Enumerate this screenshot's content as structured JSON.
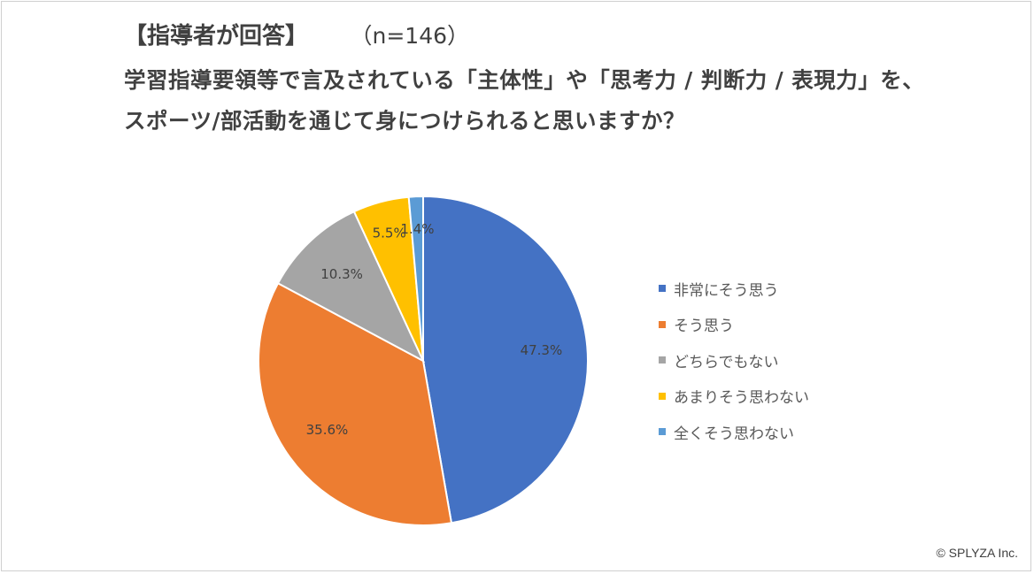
{
  "header": {
    "respondent_label": "【指導者が回答】",
    "sample_size": "（n=146）",
    "title": "学習指導要領等で言及されている「主体性」や「思考力 / 判断力 / 表現力」を、スポーツ/部活動を通じて身につけられると思いますか？"
  },
  "chart_data": {
    "type": "pie",
    "title": "学習指導要領等で言及されている「主体性」や「思考力 / 判断力 / 表現力」を、スポーツ/部活動を通じて身につけられると思いますか？",
    "legend_position": "right",
    "slices": [
      {
        "label": "非常にそう思う",
        "value": 47.3,
        "display": "47.3%",
        "color": "#4472C4"
      },
      {
        "label": "そう思う",
        "value": 35.6,
        "display": "35.6%",
        "color": "#ED7D31"
      },
      {
        "label": "どちらでもない",
        "value": 10.3,
        "display": "10.3%",
        "color": "#A5A5A5"
      },
      {
        "label": "あまりそう思わない",
        "value": 5.5,
        "display": "5.5%",
        "color": "#FFC000"
      },
      {
        "label": "全くそう思わない",
        "value": 1.4,
        "display": "1.4%",
        "color": "#5B9BD5"
      }
    ]
  },
  "footer": {
    "copyright": "© SPLYZA Inc."
  }
}
